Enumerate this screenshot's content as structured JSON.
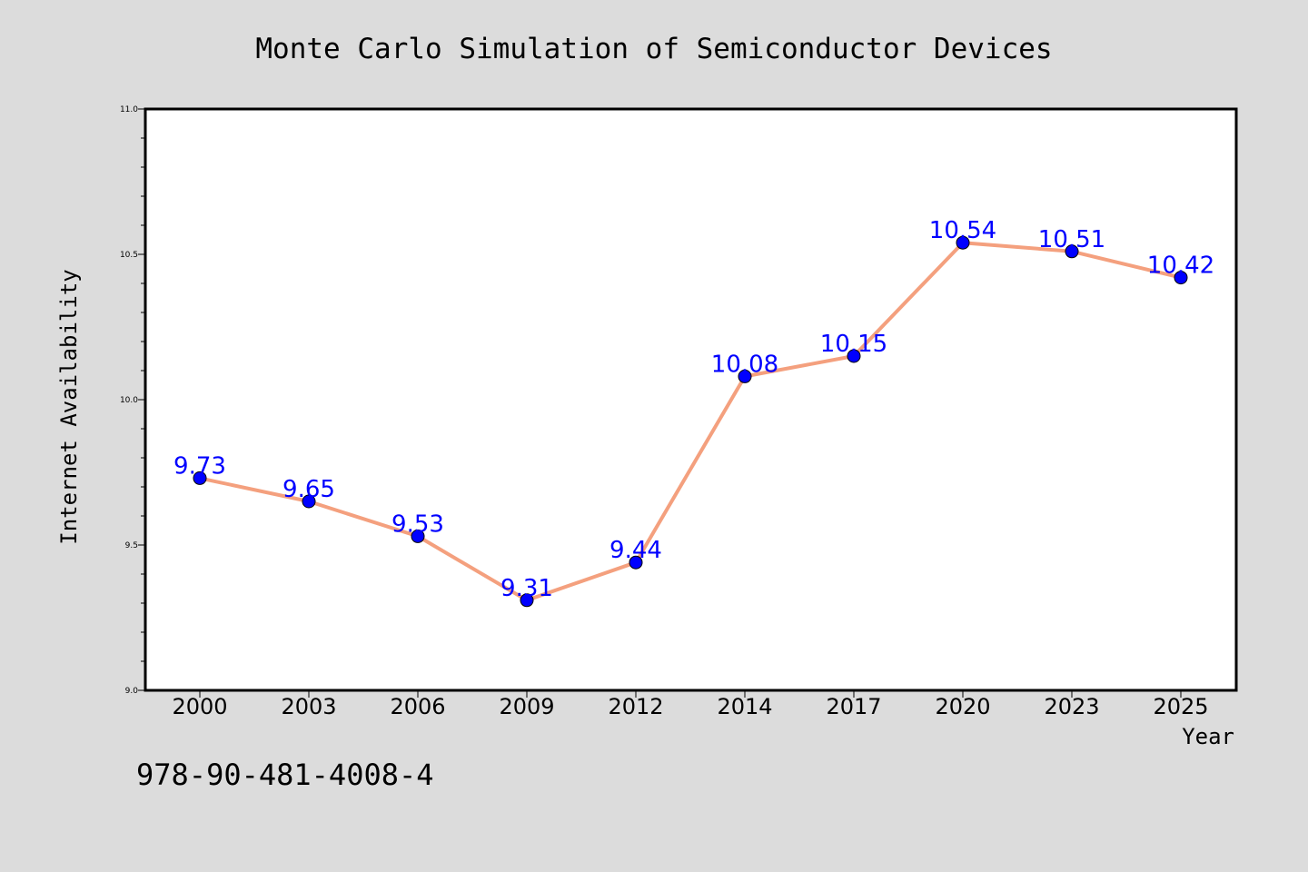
{
  "chart_data": {
    "type": "line",
    "title": "Monte Carlo Simulation of Semiconductor Devices",
    "xlabel": "Year",
    "ylabel": "Internet Availability",
    "categories": [
      "2000",
      "2003",
      "2006",
      "2009",
      "2012",
      "2014",
      "2017",
      "2020",
      "2023",
      "2025"
    ],
    "series": [
      {
        "values": [
          9.73,
          9.65,
          9.53,
          9.31,
          9.44,
          10.08,
          10.15,
          10.54,
          10.51,
          10.42
        ],
        "line_color": "#f4a07e",
        "marker_color": "#0000ff"
      }
    ],
    "ylim": [
      9.0,
      11.0
    ],
    "y_major_ticks": [
      9.0,
      9.5,
      10.0,
      10.5,
      11.0
    ],
    "y_tick_labels": [
      "9.0",
      "9.5",
      "10.0",
      "10.5",
      "11.0"
    ],
    "data_labels_shown": true,
    "data_label_color": "#0000ff",
    "grid": false,
    "legend": "none"
  },
  "footnote": "978-90-481-4008-4",
  "colors": {
    "background": "#dcdcdc",
    "plot_area": "#ffffff"
  }
}
